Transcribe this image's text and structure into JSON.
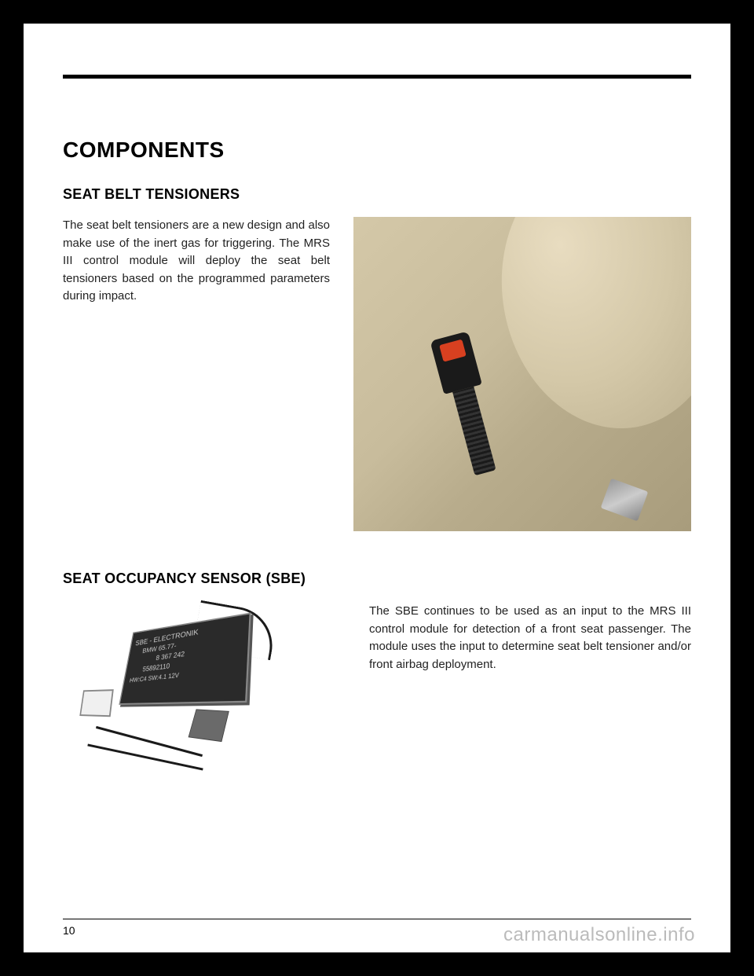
{
  "page": {
    "number": "10",
    "watermark": "carmanualsonline.info"
  },
  "heading_main": "COMPONENTS",
  "section1": {
    "heading": "SEAT BELT TENSIONERS",
    "paragraph": "The seat belt tensioners are a new design and also make use of the inert gas for triggering. The MRS III control module will deploy the seat belt tensioners based on the programmed parameters during impact."
  },
  "section2": {
    "heading": "SEAT OCCUPANCY SENSOR (SBE)",
    "paragraph": "The SBE continues to be used as an input to the MRS III control module for detection of a front seat passenger. The module uses the input to determine seat belt tensioner and/or front airbag deployment."
  },
  "sbe_module": {
    "label_line1": "SBE - ELECTRONIK",
    "label_line2": "BMW 65.77-",
    "label_line3": "8 367 242",
    "label_line4": "55892110",
    "label_line5": "HW:C4 SW:4.1   12V"
  },
  "colors": {
    "page_bg": "#ffffff",
    "frame_bg": "#000000",
    "text": "#222222",
    "divider": "#000000",
    "buckle_slot": "#d84020",
    "seat_fabric": "#d4c8a8",
    "module_body": "#2a2a2a",
    "module_text": "#cccccc",
    "watermark": "rgba(120,120,120,0.5)"
  }
}
